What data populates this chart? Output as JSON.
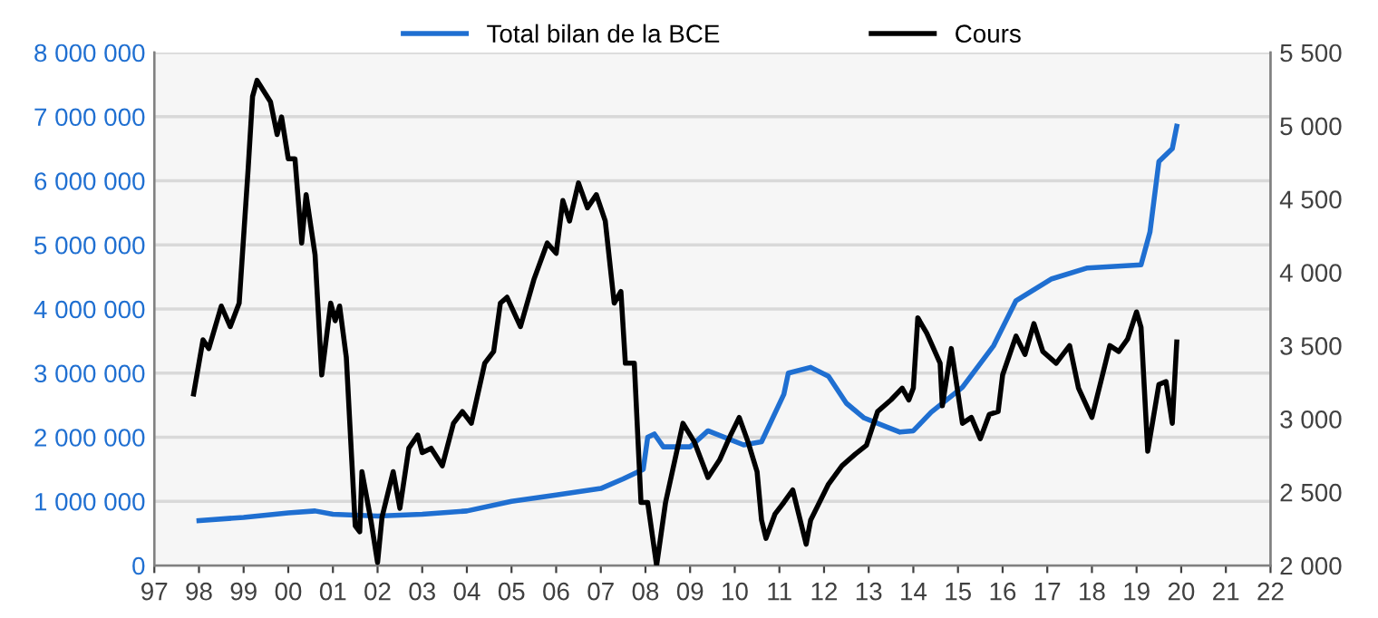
{
  "chart_data": {
    "type": "line",
    "legend": "top",
    "grid": "y",
    "xlim": [
      1997,
      2022
    ],
    "xticks": [
      {
        "value": 1997,
        "label": "97"
      },
      {
        "value": 1998,
        "label": "98"
      },
      {
        "value": 1999,
        "label": "99"
      },
      {
        "value": 2000,
        "label": "00"
      },
      {
        "value": 2001,
        "label": "01"
      },
      {
        "value": 2002,
        "label": "02"
      },
      {
        "value": 2003,
        "label": "03"
      },
      {
        "value": 2004,
        "label": "04"
      },
      {
        "value": 2005,
        "label": "05"
      },
      {
        "value": 2006,
        "label": "06"
      },
      {
        "value": 2007,
        "label": "07"
      },
      {
        "value": 2008,
        "label": "08"
      },
      {
        "value": 2009,
        "label": "09"
      },
      {
        "value": 2010,
        "label": "10"
      },
      {
        "value": 2011,
        "label": "11"
      },
      {
        "value": 2012,
        "label": "12"
      },
      {
        "value": 2013,
        "label": "13"
      },
      {
        "value": 2014,
        "label": "14"
      },
      {
        "value": 2015,
        "label": "15"
      },
      {
        "value": 2016,
        "label": "16"
      },
      {
        "value": 2017,
        "label": "17"
      },
      {
        "value": 2018,
        "label": "18"
      },
      {
        "value": 2019,
        "label": "19"
      },
      {
        "value": 2020,
        "label": "20"
      },
      {
        "value": 2021,
        "label": "21"
      },
      {
        "value": 2022,
        "label": "22"
      }
    ],
    "ylim": [
      0,
      8000000
    ],
    "yticks": [
      0,
      {
        "value": 1000000,
        "label": "1 000 000"
      },
      {
        "value": 2000000,
        "label": "2 000 000"
      },
      {
        "value": 3000000,
        "label": "3 000 000"
      },
      {
        "value": 4000000,
        "label": "4 000 000"
      },
      {
        "value": 5000000,
        "label": "5 000 000"
      },
      {
        "value": 6000000,
        "label": "6 000 000"
      },
      {
        "value": 7000000,
        "label": "7 000 000"
      },
      {
        "value": 8000000,
        "label": "8 000 000"
      }
    ],
    "y2lim": [
      2000,
      5500
    ],
    "y2ticks": [
      {
        "value": 2000,
        "label": "2 000"
      },
      {
        "value": 2500,
        "label": "2 500"
      },
      {
        "value": 3000,
        "label": "3 000"
      },
      {
        "value": 3500,
        "label": "3 500"
      },
      {
        "value": 4000,
        "label": "4 000"
      },
      {
        "value": 4500,
        "label": "4 500"
      },
      {
        "value": 5000,
        "label": "5 000"
      },
      {
        "value": 5500,
        "label": "5 500"
      }
    ],
    "series": [
      {
        "name": "Total bilan de la BCE",
        "color": "#1f6fd1",
        "x": [
          1998.0,
          1999.0,
          2000.0,
          2000.6,
          2001.0,
          2002.0,
          2003.0,
          2004.0,
          2005.0,
          2006.0,
          2007.0,
          2007.5,
          2007.95,
          2008.05,
          2008.2,
          2008.4,
          2009.0,
          2009.4,
          2010.2,
          2010.6,
          2011.1,
          2011.2,
          2011.7,
          2012.1,
          2012.5,
          2012.9,
          2013.4,
          2013.7,
          2014.0,
          2014.4,
          2015.1,
          2015.8,
          2016.3,
          2017.1,
          2017.9,
          2019.1,
          2019.3,
          2019.5,
          2019.8,
          2019.9
        ],
        "values": [
          700000,
          750000,
          820000,
          850000,
          800000,
          770000,
          800000,
          850000,
          1000000,
          1100000,
          1200000,
          1350000,
          1500000,
          2000000,
          2050000,
          1850000,
          1850000,
          2100000,
          1880000,
          1930000,
          2670000,
          3000000,
          3090000,
          2950000,
          2530000,
          2300000,
          2160000,
          2080000,
          2100000,
          2390000,
          2780000,
          3430000,
          4130000,
          4470000,
          4640000,
          4690000,
          5200000,
          6300000,
          6500000,
          6850000
        ]
      },
      {
        "name": "Cours",
        "color": "#000000",
        "axis": "y2",
        "x": [
          1997.88,
          1998.09,
          1998.22,
          1998.5,
          1998.7,
          1998.9,
          1999.1,
          1999.2,
          1999.3,
          1999.6,
          1999.75,
          1999.85,
          2000.0,
          2000.15,
          2000.3,
          2000.4,
          2000.6,
          2000.75,
          2000.95,
          2001.05,
          2001.15,
          2001.3,
          2001.5,
          2001.6,
          2001.65,
          2001.85,
          2002.0,
          2002.1,
          2002.35,
          2002.5,
          2002.7,
          2002.9,
          2003.0,
          2003.2,
          2003.45,
          2003.7,
          2003.9,
          2004.1,
          2004.4,
          2004.6,
          2004.75,
          2004.9,
          2005.2,
          2005.5,
          2005.8,
          2006.0,
          2006.15,
          2006.3,
          2006.5,
          2006.7,
          2006.9,
          2007.1,
          2007.3,
          2007.45,
          2007.55,
          2007.75,
          2007.9,
          2008.05,
          2008.25,
          2008.45,
          2008.84,
          2009.1,
          2009.4,
          2009.66,
          2009.9,
          2010.1,
          2010.3,
          2010.5,
          2010.6,
          2010.7,
          2010.9,
          2011.1,
          2011.3,
          2011.4,
          2011.6,
          2011.7,
          2012.1,
          2012.4,
          2012.7,
          2012.95,
          2013.2,
          2013.5,
          2013.75,
          2013.9,
          2014.0,
          2014.1,
          2014.3,
          2014.6,
          2014.65,
          2014.85,
          2015.1,
          2015.3,
          2015.5,
          2015.7,
          2015.9,
          2016.0,
          2016.3,
          2016.5,
          2016.7,
          2016.9,
          2017.2,
          2017.5,
          2017.7,
          2018.0,
          2018.2,
          2018.4,
          2018.6,
          2018.8,
          2019.0,
          2019.1,
          2019.25,
          2019.5,
          2019.66,
          2019.8,
          2019.9
        ],
        "values": [
          3170,
          3540,
          3480,
          3770,
          3630,
          3790,
          4700,
          5200,
          5310,
          5165,
          4940,
          5060,
          4775,
          4775,
          4200,
          4530,
          4120,
          3300,
          3790,
          3670,
          3770,
          3420,
          2270,
          2230,
          2640,
          2310,
          2020,
          2330,
          2640,
          2390,
          2800,
          2890,
          2770,
          2800,
          2680,
          2970,
          3050,
          2970,
          3380,
          3460,
          3790,
          3830,
          3630,
          3950,
          4200,
          4130,
          4490,
          4350,
          4610,
          4440,
          4530,
          4350,
          3790,
          3870,
          3380,
          3380,
          2430,
          2430,
          2000,
          2430,
          2970,
          2840,
          2600,
          2720,
          2885,
          3010,
          2840,
          2640,
          2310,
          2185,
          2350,
          2430,
          2515,
          2390,
          2145,
          2310,
          2555,
          2680,
          2760,
          2820,
          3050,
          3130,
          3210,
          3130,
          3210,
          3690,
          3585,
          3380,
          3090,
          3480,
          2970,
          3010,
          2865,
          3030,
          3050,
          3300,
          3565,
          3440,
          3650,
          3460,
          3380,
          3500,
          3210,
          3010,
          3255,
          3500,
          3460,
          3545,
          3730,
          3625,
          2780,
          3235,
          3255,
          2970,
          3525
        ]
      }
    ]
  }
}
